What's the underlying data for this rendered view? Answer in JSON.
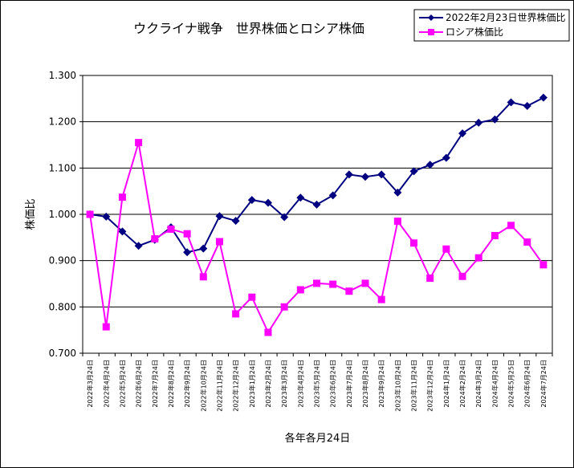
{
  "chart_data": {
    "type": "line",
    "title": "ウクライナ戦争　世界株価とロシア株価",
    "xlabel": "各年各月24日",
    "ylabel": "株価比",
    "ylim": [
      0.7,
      1.3
    ],
    "yticks": [
      "0.700",
      "0.800",
      "0.900",
      "1.000",
      "1.100",
      "1.200",
      "1.300"
    ],
    "grid": true,
    "legend_position": "top-right",
    "categories": [
      "2022年3月24日",
      "2022年4月24日",
      "2022年5月24日",
      "2022年6月24日",
      "2022年7月24日",
      "2022年8月24日",
      "2022年9月24日",
      "2022年10月24日",
      "2022年11月24日",
      "2022年12月24日",
      "2023年1月24日",
      "2023年2月24日",
      "2023年3月24日",
      "2023年4月24日",
      "2023年5月24日",
      "2023年6月24日",
      "2023年7月24日",
      "2023年8月24日",
      "2023年9月24日",
      "2023年10月24日",
      "2023年11月24日",
      "2023年12月24日",
      "2024年1月24日",
      "2024年2月24日",
      "2024年3月24日",
      "2024年4月24日",
      "2024年5月25日",
      "2024年6月24日",
      "2024年7月24日"
    ],
    "series": [
      {
        "name": "2022年2月23日世界株価比",
        "color": "#000080",
        "marker": "diamond",
        "values": [
          1.0,
          0.995,
          0.963,
          0.932,
          0.945,
          0.972,
          0.918,
          0.926,
          0.996,
          0.986,
          1.031,
          1.025,
          0.994,
          1.036,
          1.021,
          1.041,
          1.086,
          1.081,
          1.086,
          1.047,
          1.093,
          1.107,
          1.122,
          1.175,
          1.198,
          1.205,
          1.242,
          1.234,
          1.252
        ]
      },
      {
        "name": "ロシア株価比",
        "color": "#ff00ff",
        "marker": "square",
        "values": [
          1.0,
          0.757,
          1.037,
          1.155,
          0.947,
          0.968,
          0.958,
          0.865,
          0.941,
          0.785,
          0.821,
          0.745,
          0.8,
          0.837,
          0.851,
          0.849,
          0.834,
          0.851,
          0.816,
          0.985,
          0.938,
          0.862,
          0.925,
          0.866,
          0.906,
          0.954,
          0.976,
          0.94,
          0.891
        ]
      }
    ]
  }
}
